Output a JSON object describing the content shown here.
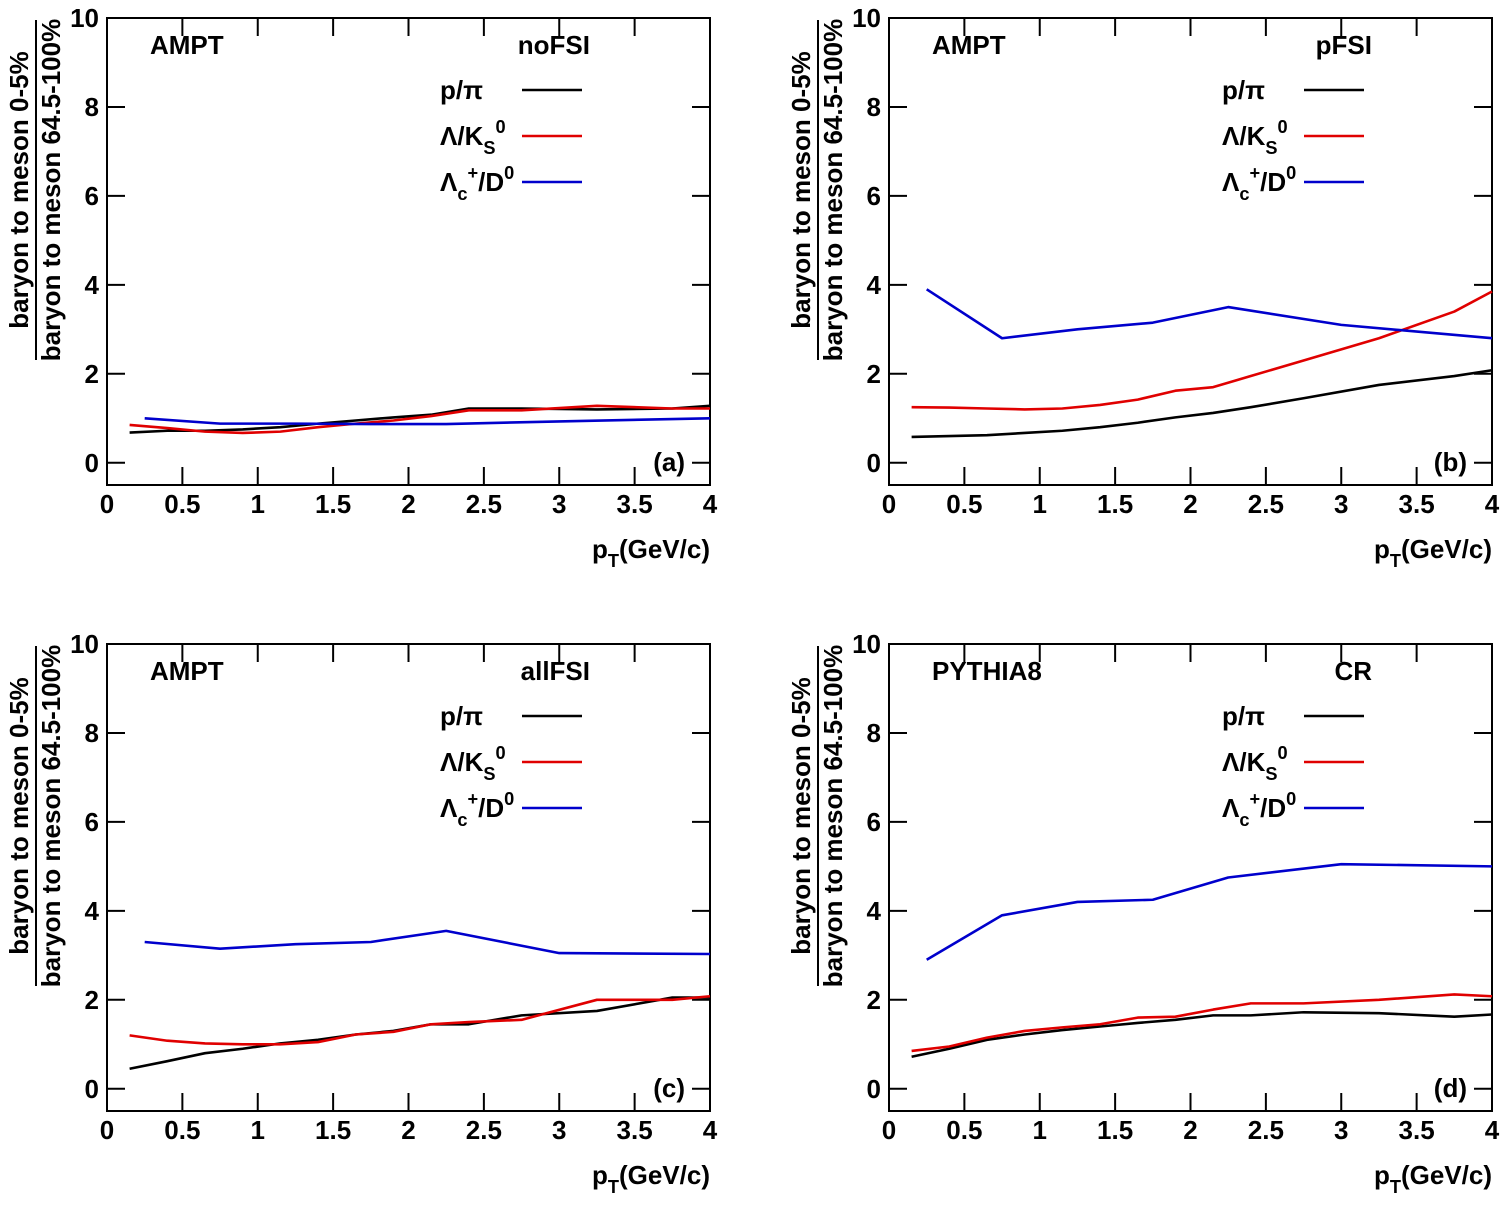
{
  "chart_data": [
    {
      "type": "line",
      "annotations": [
        "AMPT",
        "noFSI",
        "(a)"
      ],
      "ylabel": {
        "numerator": "baryon to meson 0-5%",
        "denominator": "baryon to meson 64.5-100%"
      },
      "xlabel": "p_{T}(GeV/c)",
      "xlim": [
        0,
        4
      ],
      "ylim": [
        -0.5,
        10
      ],
      "xticks": [
        0,
        0.5,
        1,
        1.5,
        2,
        2.5,
        3,
        3.5,
        4
      ],
      "yticks": [
        0,
        2,
        4,
        6,
        8,
        10
      ],
      "series": [
        {
          "name": "p/π",
          "color": "#000000",
          "x": [
            0.15,
            0.4,
            0.65,
            0.9,
            1.15,
            1.4,
            1.65,
            1.9,
            2.15,
            2.4,
            2.75,
            3.25,
            3.75,
            4.0
          ],
          "values": [
            0.68,
            0.72,
            0.72,
            0.75,
            0.8,
            0.88,
            0.95,
            1.02,
            1.08,
            1.22,
            1.22,
            1.2,
            1.22,
            1.28
          ]
        },
        {
          "name": "Λ/K_{S}^{0}",
          "color": "#e00000",
          "x": [
            0.15,
            0.4,
            0.65,
            0.9,
            1.15,
            1.4,
            1.65,
            1.9,
            2.15,
            2.4,
            2.75,
            3.25,
            3.75,
            4.0
          ],
          "values": [
            0.85,
            0.78,
            0.7,
            0.67,
            0.7,
            0.8,
            0.88,
            0.95,
            1.05,
            1.18,
            1.18,
            1.28,
            1.22,
            1.22
          ]
        },
        {
          "name": "Λ_{c}^{+}/D^{0}",
          "color": "#0000cc",
          "x": [
            0.25,
            0.75,
            1.25,
            1.75,
            2.25,
            3.0,
            4.0
          ],
          "values": [
            1.0,
            0.88,
            0.88,
            0.87,
            0.87,
            0.93,
            1.0
          ]
        }
      ]
    },
    {
      "type": "line",
      "annotations": [
        "AMPT",
        "pFSI",
        "(b)"
      ],
      "ylabel": {
        "numerator": "baryon to meson 0-5%",
        "denominator": "baryon to meson 64.5-100%"
      },
      "xlabel": "p_{T}(GeV/c)",
      "xlim": [
        0,
        4
      ],
      "ylim": [
        -0.5,
        10
      ],
      "xticks": [
        0,
        0.5,
        1,
        1.5,
        2,
        2.5,
        3,
        3.5,
        4
      ],
      "yticks": [
        0,
        2,
        4,
        6,
        8,
        10
      ],
      "series": [
        {
          "name": "p/π",
          "color": "#000000",
          "x": [
            0.15,
            0.4,
            0.65,
            0.9,
            1.15,
            1.4,
            1.65,
            1.9,
            2.15,
            2.4,
            2.75,
            3.25,
            3.75,
            4.0
          ],
          "values": [
            0.58,
            0.6,
            0.62,
            0.67,
            0.72,
            0.8,
            0.9,
            1.02,
            1.12,
            1.25,
            1.45,
            1.75,
            1.95,
            2.08
          ]
        },
        {
          "name": "Λ/K_{S}^{0}",
          "color": "#e00000",
          "x": [
            0.15,
            0.4,
            0.65,
            0.9,
            1.15,
            1.4,
            1.65,
            1.9,
            2.15,
            2.4,
            2.75,
            3.25,
            3.75,
            4.0
          ],
          "values": [
            1.25,
            1.24,
            1.22,
            1.2,
            1.22,
            1.3,
            1.42,
            1.62,
            1.7,
            1.95,
            2.3,
            2.8,
            3.4,
            3.85
          ]
        },
        {
          "name": "Λ_{c}^{+}/D^{0}",
          "color": "#0000cc",
          "x": [
            0.25,
            0.75,
            1.25,
            1.75,
            2.25,
            3.0,
            4.0
          ],
          "values": [
            3.9,
            2.8,
            3.0,
            3.15,
            3.5,
            3.1,
            2.8
          ]
        }
      ]
    },
    {
      "type": "line",
      "annotations": [
        "AMPT",
        "allFSI",
        "(c)"
      ],
      "ylabel": {
        "numerator": "baryon to meson 0-5%",
        "denominator": "baryon to meson 64.5-100%"
      },
      "xlabel": "p_{T}(GeV/c)",
      "xlim": [
        0,
        4
      ],
      "ylim": [
        -0.5,
        10
      ],
      "xticks": [
        0,
        0.5,
        1,
        1.5,
        2,
        2.5,
        3,
        3.5,
        4
      ],
      "yticks": [
        0,
        2,
        4,
        6,
        8,
        10
      ],
      "series": [
        {
          "name": "p/π",
          "color": "#000000",
          "x": [
            0.15,
            0.4,
            0.65,
            0.9,
            1.15,
            1.4,
            1.65,
            1.9,
            2.15,
            2.4,
            2.75,
            3.25,
            3.75,
            4.0
          ],
          "values": [
            0.45,
            0.62,
            0.8,
            0.9,
            1.02,
            1.1,
            1.22,
            1.3,
            1.45,
            1.45,
            1.65,
            1.75,
            2.05,
            2.05
          ]
        },
        {
          "name": "Λ/K_{S}^{0}",
          "color": "#e00000",
          "x": [
            0.15,
            0.4,
            0.65,
            0.9,
            1.15,
            1.4,
            1.65,
            1.9,
            2.15,
            2.4,
            2.75,
            3.25,
            3.75,
            4.0
          ],
          "values": [
            1.2,
            1.08,
            1.02,
            1.0,
            1.0,
            1.05,
            1.22,
            1.28,
            1.45,
            1.5,
            1.55,
            2.0,
            2.0,
            2.08
          ]
        },
        {
          "name": "Λ_{c}^{+}/D^{0}",
          "color": "#0000cc",
          "x": [
            0.25,
            0.75,
            1.25,
            1.75,
            2.25,
            3.0,
            4.0
          ],
          "values": [
            3.3,
            3.15,
            3.25,
            3.3,
            3.55,
            3.05,
            3.03
          ]
        }
      ]
    },
    {
      "type": "line",
      "annotations": [
        "PYTHIA8",
        "CR",
        "(d)"
      ],
      "ylabel": {
        "numerator": "baryon to meson 0-5%",
        "denominator": "baryon to meson 64.5-100%"
      },
      "xlabel": "p_{T}(GeV/c)",
      "xlim": [
        0,
        4
      ],
      "ylim": [
        -0.5,
        10
      ],
      "xticks": [
        0,
        0.5,
        1,
        1.5,
        2,
        2.5,
        3,
        3.5,
        4
      ],
      "yticks": [
        0,
        2,
        4,
        6,
        8,
        10
      ],
      "series": [
        {
          "name": "p/π",
          "color": "#000000",
          "x": [
            0.15,
            0.4,
            0.65,
            0.9,
            1.15,
            1.4,
            1.65,
            1.9,
            2.15,
            2.4,
            2.75,
            3.25,
            3.75,
            4.0
          ],
          "values": [
            0.72,
            0.9,
            1.1,
            1.22,
            1.32,
            1.4,
            1.48,
            1.55,
            1.65,
            1.65,
            1.72,
            1.7,
            1.62,
            1.67
          ]
        },
        {
          "name": "Λ/K_{S}^{0}",
          "color": "#e00000",
          "x": [
            0.15,
            0.4,
            0.65,
            0.9,
            1.15,
            1.4,
            1.65,
            1.9,
            2.15,
            2.4,
            2.75,
            3.25,
            3.75,
            4.0
          ],
          "values": [
            0.85,
            0.95,
            1.15,
            1.3,
            1.38,
            1.45,
            1.6,
            1.62,
            1.78,
            1.92,
            1.92,
            2.0,
            2.12,
            2.08
          ]
        },
        {
          "name": "Λ_{c}^{+}/D^{0}",
          "color": "#0000cc",
          "x": [
            0.25,
            0.75,
            1.25,
            1.75,
            2.25,
            3.0,
            4.0
          ],
          "values": [
            2.9,
            3.9,
            4.2,
            4.25,
            4.75,
            5.05,
            5.0
          ]
        }
      ]
    }
  ]
}
